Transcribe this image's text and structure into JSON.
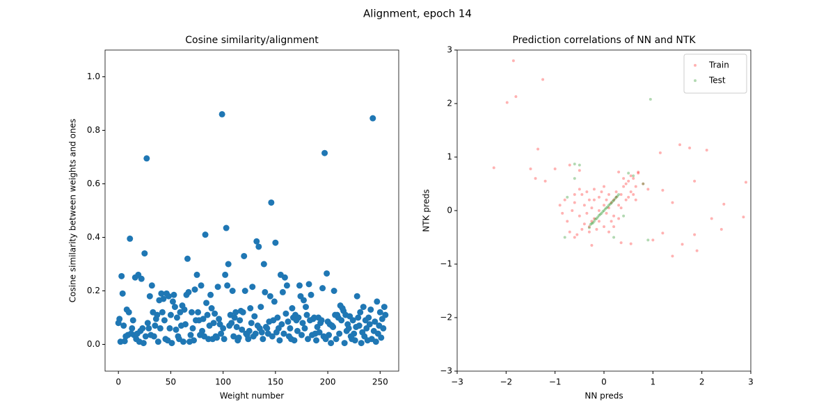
{
  "title": "Alignment, epoch 14",
  "chart_data": [
    {
      "type": "scatter",
      "title": "Cosine similarity/alignment",
      "xlabel": "Weight number",
      "ylabel": "Cosine similarity between weights and ones",
      "color": "#1f77b4",
      "xlim": [
        -12.75,
        267.75
      ],
      "ylim": [
        -0.1,
        1.1
      ],
      "xticks": [
        0,
        50,
        100,
        150,
        200,
        250
      ],
      "yticks": [
        {
          "value": 0,
          "label": "0.0"
        },
        0.2,
        0.4,
        0.6,
        0.8,
        {
          "value": 1,
          "label": "1.0"
        }
      ],
      "x": [
        0,
        1,
        2,
        3,
        4,
        5,
        6,
        7,
        8,
        9,
        10,
        11,
        12,
        13,
        14,
        15,
        16,
        17,
        18,
        19,
        20,
        21,
        22,
        23,
        24,
        25,
        26,
        27,
        28,
        29,
        30,
        31,
        32,
        33,
        34,
        35,
        36,
        37,
        38,
        39,
        40,
        41,
        42,
        43,
        44,
        45,
        46,
        47,
        48,
        49,
        50,
        51,
        52,
        53,
        54,
        55,
        56,
        57,
        58,
        59,
        60,
        61,
        62,
        63,
        64,
        65,
        66,
        67,
        68,
        69,
        70,
        71,
        72,
        73,
        74,
        75,
        76,
        77,
        78,
        79,
        80,
        81,
        82,
        83,
        84,
        85,
        86,
        87,
        88,
        89,
        90,
        91,
        92,
        93,
        94,
        95,
        96,
        97,
        98,
        99,
        100,
        101,
        102,
        103,
        104,
        105,
        106,
        107,
        108,
        109,
        110,
        111,
        112,
        113,
        114,
        115,
        116,
        117,
        118,
        119,
        120,
        121,
        122,
        123,
        124,
        125,
        126,
        127,
        128,
        129,
        130,
        131,
        132,
        133,
        134,
        135,
        136,
        137,
        138,
        139,
        140,
        141,
        142,
        143,
        144,
        145,
        146,
        147,
        148,
        149,
        150,
        151,
        152,
        153,
        154,
        155,
        156,
        157,
        158,
        159,
        160,
        161,
        162,
        163,
        164,
        165,
        166,
        167,
        168,
        169,
        170,
        171,
        172,
        173,
        174,
        175,
        176,
        177,
        178,
        179,
        180,
        181,
        182,
        183,
        184,
        185,
        186,
        187,
        188,
        189,
        190,
        191,
        192,
        193,
        194,
        195,
        196,
        197,
        198,
        199,
        200,
        201,
        202,
        203,
        204,
        205,
        206,
        207,
        208,
        209,
        210,
        211,
        212,
        213,
        214,
        215,
        216,
        217,
        218,
        219,
        220,
        221,
        222,
        223,
        224,
        225,
        226,
        227,
        228,
        229,
        230,
        231,
        232,
        233,
        234,
        235,
        236,
        237,
        238,
        239,
        240,
        241,
        242,
        243,
        244,
        245,
        246,
        247,
        248,
        249,
        250,
        251,
        252,
        253,
        254,
        255
      ],
      "y": [
        0.08,
        0.095,
        0.01,
        0.255,
        0.19,
        0.07,
        0.012,
        0.03,
        0.13,
        0.035,
        0.12,
        0.395,
        0.04,
        0.06,
        0.09,
        0.035,
        0.25,
        0.02,
        0.04,
        0.26,
        0.01,
        0.05,
        0.245,
        0.06,
        0.005,
        0.34,
        0.03,
        0.695,
        0.08,
        0.06,
        0.18,
        0.035,
        0.22,
        0.12,
        0.03,
        0.07,
        0.095,
        0.11,
        0.01,
        0.165,
        0.06,
        0.19,
        0.12,
        0.17,
        0.09,
        0.02,
        0.19,
        0.015,
        0.18,
        0.06,
        0.11,
        0.005,
        0.16,
        0.185,
        0.14,
        0.055,
        0.1,
        0.03,
        0.02,
        0.12,
        0.07,
        0.145,
        0.01,
        0.13,
        0.075,
        0.185,
        0.32,
        0.195,
        0.01,
        0.035,
        0.12,
        0.06,
        0.015,
        0.205,
        0.09,
        0.26,
        0.12,
        0.09,
        0.035,
        0.22,
        0.05,
        0.095,
        0.03,
        0.41,
        0.155,
        0.11,
        0.02,
        0.07,
        0.185,
        0.135,
        0.02,
        0.08,
        0.115,
        0.03,
        0.025,
        0.215,
        0.095,
        0.075,
        0.04,
        0.86,
        0.06,
        0.02,
        0.26,
        0.435,
        0.22,
        0.3,
        0.07,
        0.11,
        0.08,
        0.2,
        0.03,
        0.1,
        0.12,
        0.065,
        0.015,
        0.025,
        0.09,
        0.125,
        0.055,
        0.12,
        0.33,
        0.2,
        0.04,
        0.035,
        0.02,
        0.05,
        0.135,
        0.08,
        0.215,
        0.03,
        0.105,
        0.04,
        0.385,
        0.07,
        0.365,
        0.06,
        0.14,
        0.045,
        0.02,
        0.3,
        0.195,
        0.065,
        0.06,
        0.04,
        0.085,
        0.18,
        0.53,
        0.03,
        0.09,
        0.16,
        0.38,
        0.045,
        0.1,
        0.06,
        0.015,
        0.26,
        0.075,
        0.195,
        0.04,
        0.25,
        0.115,
        0.22,
        0.085,
        0.03,
        0.06,
        0.02,
        0.135,
        0.1,
        0.015,
        0.11,
        0.09,
        0.05,
        0.1,
        0.22,
        0.18,
        0.035,
        0.08,
        0.165,
        0.06,
        0.14,
        0.11,
        0.02,
        0.225,
        0.09,
        0.185,
        0.035,
        0.095,
        0.1,
        0.04,
        0.015,
        0.065,
        0.1,
        0.045,
        0.08,
        0.09,
        0.21,
        0.03,
        0.715,
        0.02,
        0.265,
        0.085,
        0.035,
        0.075,
        0.005,
        0.07,
        0.065,
        0.2,
        0.11,
        0.02,
        0.11,
        0.1,
        0.04,
        0.145,
        0.09,
        0.135,
        0.125,
        0.005,
        0.11,
        0.05,
        0.075,
        0.06,
        0.105,
        0.03,
        0.02,
        0.09,
        0.04,
        0.015,
        0.065,
        0.18,
        0.1,
        0.07,
        0.12,
        0.005,
        0.045,
        0.14,
        0.03,
        0.09,
        0.06,
        0.015,
        0.1,
        0.075,
        0.13,
        0.02,
        0.845,
        0.05,
        0.085,
        0.01,
        0.16,
        0.04,
        0.07,
        0.12,
        0.025,
        0.095,
        0.06,
        0.14,
        0.11
      ]
    },
    {
      "type": "scatter",
      "title": "Prediction correlations of NN and NTK",
      "xlabel": "NN preds",
      "ylabel": "NTK preds",
      "legend": "upper right",
      "alpha": 0.3,
      "xlim": [
        -3,
        3
      ],
      "ylim": [
        -3,
        3
      ],
      "xticks": [
        {
          "value": -3,
          "label": "−3"
        },
        {
          "value": -2,
          "label": "−2"
        },
        {
          "value": -1,
          "label": "−1"
        },
        0,
        1,
        2,
        3
      ],
      "yticks": [
        {
          "value": -3,
          "label": "−3"
        },
        {
          "value": -2,
          "label": "−2"
        },
        {
          "value": -1,
          "label": "−1"
        },
        0,
        1,
        2,
        3
      ],
      "series": [
        {
          "name": "Train",
          "color": "#ff0000",
          "x": [
            -1.85,
            -1.8,
            -1.98,
            -1.25,
            -2.25,
            -1.35,
            1.55,
            1.75,
            2.1,
            1.15,
            2.9,
            1.4,
            1.9,
            2.2,
            2.4,
            2.85,
            2.45,
            1.6,
            1.0,
            0.55,
            -0.25,
            0.35,
            1.85,
            1.4,
            1.85,
            -1.5,
            -1.2,
            -1.4,
            -1.0,
            -0.7,
            -0.5,
            0.3,
            0.7,
            1.2,
            1.2,
            -0.5,
            -0.4,
            -0.3,
            -0.2,
            -0.1,
            0,
            0.1,
            0.2,
            0.25,
            -0.6,
            -0.55,
            -0.45,
            -0.35,
            -0.25,
            -0.15,
            -0.05,
            0.05,
            0.15,
            0.3,
            -0.7,
            -0.65,
            -0.6,
            -0.5,
            -0.4,
            -0.3,
            -0.2,
            -0.1,
            0,
            0.1,
            0.2,
            0.35,
            0.4,
            0.45,
            0.5,
            0.55,
            0.6,
            0.65,
            0.7,
            0.5,
            0.4,
            0.6,
            0.55,
            0.45,
            0.65,
            0.35,
            -0.8,
            -0.75,
            -0.85,
            -0.3,
            -0.2,
            0.1,
            0.2,
            -0.1,
            -0.35,
            0.05,
            0.15,
            -0.45,
            0.25,
            -0.25,
            0,
            -0.6,
            0.3,
            0.8,
            0.9,
            -0.9
          ],
          "y": [
            2.8,
            2.13,
            2.02,
            2.45,
            0.8,
            1.15,
            1.23,
            1.17,
            1.13,
            1.08,
            0.53,
            -0.85,
            -0.75,
            -0.15,
            -0.35,
            -0.12,
            0.12,
            -0.63,
            -0.55,
            -0.62,
            -0.65,
            -0.6,
            0.55,
            0.15,
            -0.45,
            0.78,
            0.55,
            0.6,
            0.78,
            0.85,
            0.75,
            0.72,
            0.72,
            0.38,
            -0.42,
            -0.1,
            0.1,
            -0.3,
            0.2,
            -0.2,
            0.1,
            0.3,
            -0.1,
            0.25,
            0.15,
            -0.45,
            0.3,
            -0.05,
            0.05,
            -0.35,
            0.35,
            -0.05,
            0.15,
            0.1,
            -0.4,
            0,
            -0.5,
            0.4,
            -0.25,
            0.2,
            -0.15,
            0.25,
            -0.3,
            0.05,
            0.2,
            0.3,
            0.45,
            0.2,
            0.55,
            0.35,
            0.6,
            0.45,
            0.7,
            0.25,
            0.6,
            0.3,
            0.65,
            0.5,
            0.2,
            0.05,
            0.2,
            -0.2,
            -0.05,
            -0.4,
            0.4,
            -0.4,
            -0.3,
            0,
            0.35,
            0.2,
            -0.2,
            -0.35,
            0.35,
            -0.2,
            0.45,
            0.3,
            -0.15,
            0.5,
            0.4,
            0.1
          ]
        },
        {
          "name": "Test",
          "color": "#008000",
          "x": [
            -0.3,
            -0.275,
            -0.25,
            -0.225,
            -0.2,
            -0.175,
            -0.15,
            -0.125,
            -0.1,
            -0.075,
            -0.05,
            -0.025,
            0,
            0.025,
            0.05,
            0.075,
            0.1,
            0.125,
            0.15,
            0.175,
            0.2,
            0.225,
            0.25,
            0.275,
            0.3,
            0.95,
            -0.6,
            -0.5,
            -0.8,
            0.5,
            0.6,
            0.8,
            0.9,
            -0.75,
            0.2,
            0.4,
            -0.6
          ],
          "y": [
            -0.32,
            -0.26,
            -0.24,
            -0.23,
            -0.2,
            -0.16,
            -0.15,
            -0.12,
            -0.09,
            -0.07,
            -0.05,
            -0.02,
            0,
            0.03,
            0.05,
            0.07,
            0.1,
            0.12,
            0.14,
            0.17,
            0.19,
            0.22,
            0.25,
            0.27,
            0.3,
            2.08,
            0.87,
            0.85,
            -0.5,
            0.7,
            0.65,
            0.5,
            -0.55,
            0.25,
            -0.5,
            -0.1,
            0.6
          ]
        }
      ]
    }
  ]
}
